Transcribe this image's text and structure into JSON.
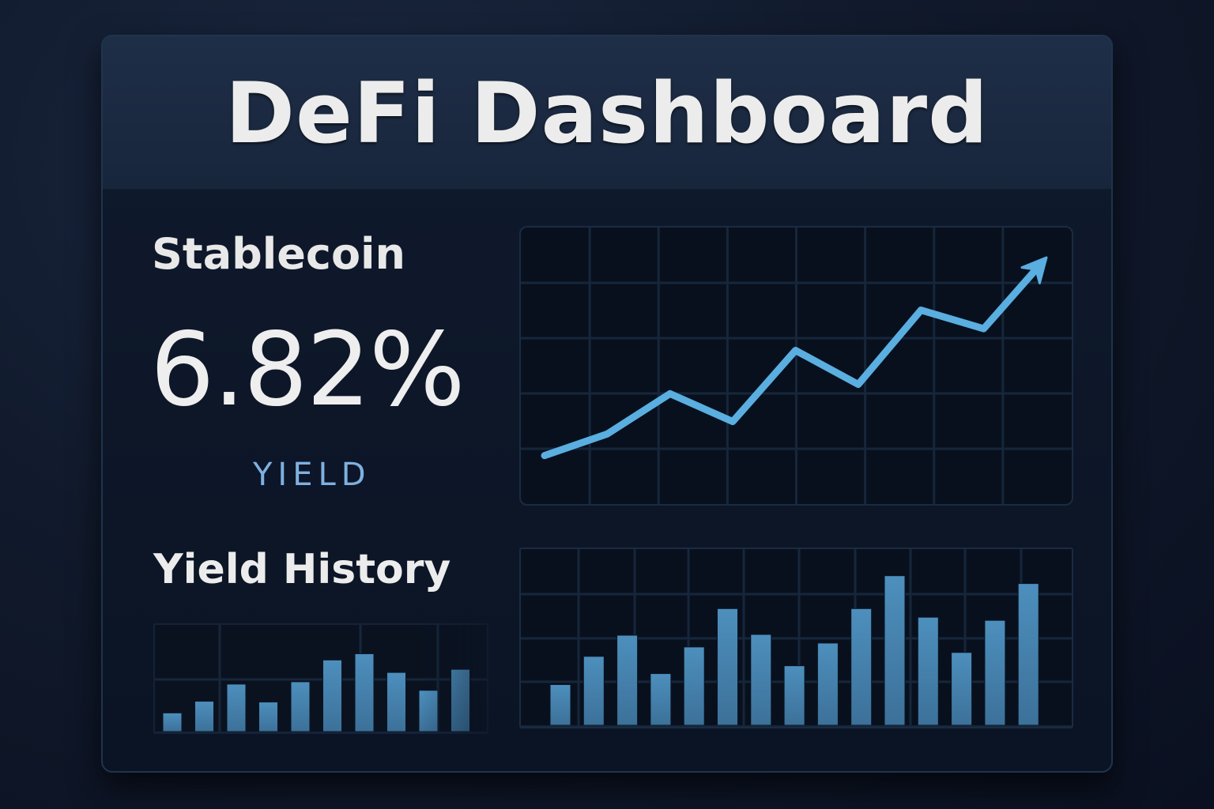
{
  "header": {
    "title": "DeFi Dashboard"
  },
  "summary": {
    "asset_label": "Stablecoin",
    "value": "6.82%",
    "value_caption": "YIELD"
  },
  "history": {
    "label": "Yield History"
  },
  "colors": {
    "background": "#111a2c",
    "card": "#0b1424",
    "header": "#1b2a42",
    "title_text": "#ececec",
    "accent_line": "#5aaee0",
    "bar_fill": "#4584b0",
    "caption": "#7fb0e0",
    "grid": "#16263b"
  },
  "chart_data": [
    {
      "type": "line",
      "title": "",
      "xlabel": "",
      "ylabel": "",
      "grid": true,
      "grid_cols": 8,
      "grid_rows": 5,
      "trend_arrow": true,
      "x": [
        0,
        1,
        2,
        3,
        4,
        5,
        6,
        7,
        8
      ],
      "values": [
        8,
        15,
        28,
        19,
        42,
        31,
        55,
        49,
        72
      ],
      "ylim": [
        0,
        80
      ]
    },
    {
      "type": "bar",
      "title": "Yield History",
      "xlabel": "",
      "ylabel": "",
      "grid": true,
      "categories": [
        "1",
        "2",
        "3",
        "4",
        "5",
        "6",
        "7",
        "8",
        "9",
        "10"
      ],
      "values": [
        24,
        39,
        61,
        38,
        64,
        92,
        100,
        76,
        53,
        80
      ],
      "ylim": [
        0,
        137
      ]
    },
    {
      "type": "bar",
      "title": "",
      "xlabel": "",
      "ylabel": "",
      "grid": true,
      "categories": [
        "1",
        "2",
        "3",
        "4",
        "5",
        "6",
        "7",
        "8",
        "9",
        "10",
        "11",
        "12",
        "13",
        "14",
        "15"
      ],
      "values": [
        52,
        88,
        115,
        66,
        100,
        149,
        116,
        76,
        105,
        149,
        191,
        138,
        93,
        134,
        181
      ],
      "ylim": [
        0,
        225
      ]
    }
  ]
}
